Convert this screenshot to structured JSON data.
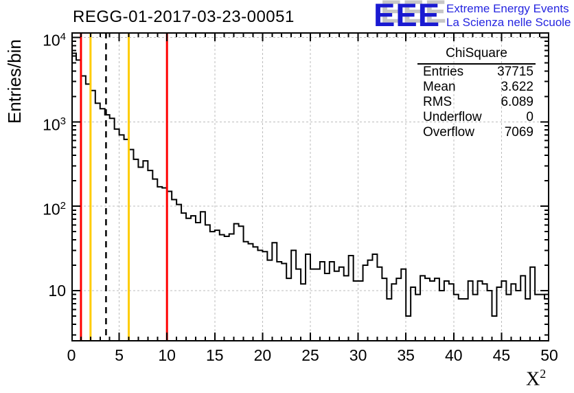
{
  "title": "REGG-01-2017-03-23-00051",
  "logo": {
    "acronym": "EEE",
    "line1": "Extreme Energy Events",
    "line2": "La Scienza nelle Scuole",
    "blue": "#2525e0"
  },
  "stats": {
    "title": "ChiSquare",
    "rows": [
      {
        "label": "Entries",
        "value": "37715"
      },
      {
        "label": "Mean",
        "value": "3.622"
      },
      {
        "label": "RMS",
        "value": "6.089"
      },
      {
        "label": "Underflow",
        "value": "0"
      },
      {
        "label": "Overflow",
        "value": "7069"
      }
    ]
  },
  "axes": {
    "y_title": "Entries/bin",
    "x_title_base": "X",
    "x_title_sup": "2",
    "x_ticks": [
      "0",
      "5",
      "10",
      "15",
      "20",
      "25",
      "30",
      "35",
      "40",
      "45",
      "50"
    ],
    "x_tick_values": [
      0,
      5,
      10,
      15,
      20,
      25,
      30,
      35,
      40,
      45,
      50
    ],
    "y_ticks": [
      {
        "base": "10",
        "sup": "4",
        "value": 10000
      },
      {
        "base": "10",
        "sup": "3",
        "value": 1000
      },
      {
        "base": "10",
        "sup": "2",
        "value": 100
      },
      {
        "base": "10",
        "sup": "",
        "value": 10
      }
    ]
  },
  "chart_data": {
    "type": "bar",
    "subtype": "step-histogram",
    "title": "REGG-01-2017-03-23-00051",
    "xlabel": "X^2",
    "ylabel": "Entries/bin",
    "xlim": [
      0,
      50
    ],
    "ylim": [
      2.5,
      11500
    ],
    "yscale": "log",
    "grid": true,
    "bin_start": 0,
    "bin_width": 0.5,
    "values": [
      6500,
      5400,
      3500,
      2800,
      2350,
      1660,
      1430,
      1210,
      1100,
      820,
      700,
      620,
      470,
      360,
      290,
      345,
      265,
      210,
      170,
      165,
      150,
      120,
      105,
      83,
      72,
      77,
      64,
      86,
      60,
      50,
      52,
      46,
      44,
      47,
      62,
      58,
      38,
      36,
      33,
      30,
      29,
      23,
      37,
      22,
      21,
      14,
      30,
      18,
      12,
      27,
      18,
      18,
      22,
      16,
      22,
      17,
      19,
      15,
      26,
      13,
      13,
      20,
      23,
      27,
      19,
      14,
      8,
      12,
      14,
      18,
      5,
      11,
      9,
      15,
      14,
      13,
      14,
      10,
      13,
      12,
      9,
      8,
      8,
      13,
      9,
      13,
      12,
      10,
      5,
      11,
      13,
      9,
      12,
      10,
      15,
      8,
      19,
      9,
      9,
      8
    ],
    "vlines": [
      {
        "x": 1,
        "color": "#ff0000",
        "style": "solid",
        "name": "red-cut-line-1"
      },
      {
        "x": 2,
        "color": "#ffcc00",
        "style": "solid",
        "name": "yellow-cut-line-1"
      },
      {
        "x": 3.622,
        "color": "#000000",
        "style": "dashed",
        "name": "mean-line"
      },
      {
        "x": 6,
        "color": "#ffcc00",
        "style": "solid",
        "name": "yellow-cut-line-2"
      },
      {
        "x": 10,
        "color": "#ff0000",
        "style": "solid",
        "name": "red-cut-line-2"
      }
    ],
    "colors": {
      "histogram": "#000000",
      "grid": "#bbbbbb",
      "frame": "#000000"
    },
    "stats_box": {
      "title": "ChiSquare",
      "entries": 37715,
      "mean": 3.622,
      "rms": 6.089,
      "underflow": 0,
      "overflow": 7069
    }
  }
}
